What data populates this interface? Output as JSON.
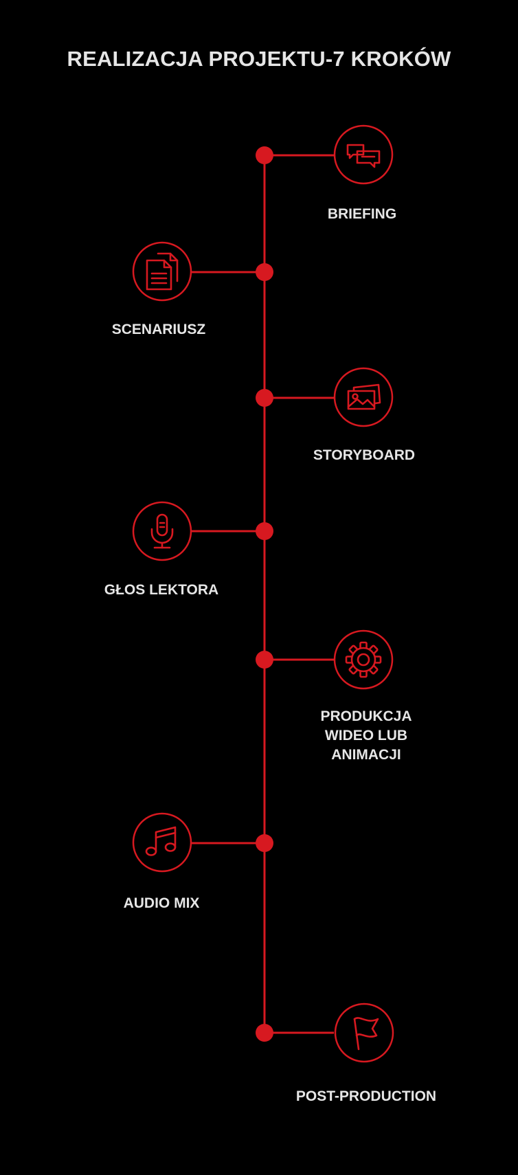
{
  "title": "REALIZACJA PROJEKTU-7 KROKÓW",
  "colors": {
    "background": "#000000",
    "accent": "#d71920",
    "text": "#e6e6e6"
  },
  "steps": [
    {
      "label": "BRIEFING",
      "side": "right",
      "icon": "chat-bubbles-icon"
    },
    {
      "label": "SCENARIUSZ",
      "side": "left",
      "icon": "documents-icon"
    },
    {
      "label": "STORYBOARD",
      "side": "right",
      "icon": "images-icon"
    },
    {
      "label": "GŁOS LEKTORA",
      "side": "left",
      "icon": "microphone-icon"
    },
    {
      "label": "PRODUKCJA\nWIDEO LUB\nANIMACJI",
      "side": "right",
      "icon": "gear-icon"
    },
    {
      "label": "AUDIO MIX",
      "side": "left",
      "icon": "music-note-icon"
    },
    {
      "label": "POST-PRODUCTION",
      "side": "right",
      "icon": "flag-icon"
    }
  ]
}
